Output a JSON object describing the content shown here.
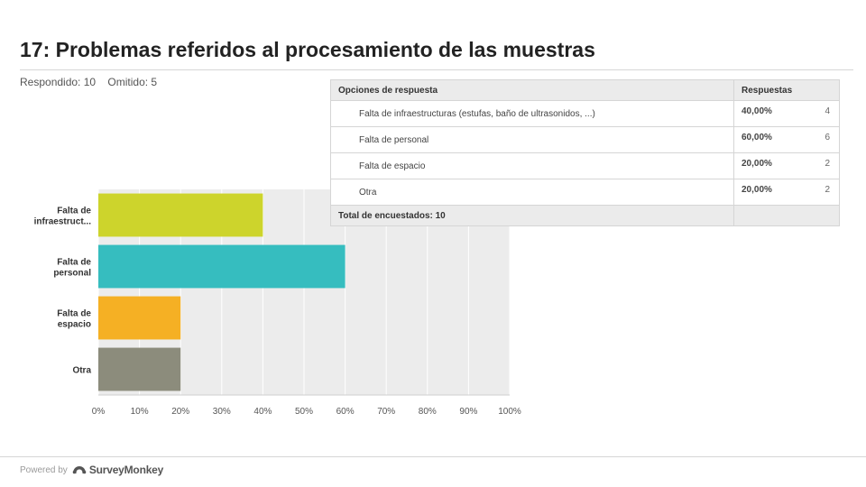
{
  "title": "17: Problemas referidos al procesamiento de las muestras",
  "stats": {
    "answered_label": "Respondido: 10",
    "skipped_label": "Omitido: 5"
  },
  "table": {
    "headers": {
      "option": "Opciones de respuesta",
      "responses": "Respuestas"
    },
    "rows": [
      {
        "option": "Falta de infraestructuras (estufas, baño de ultrasonidos, ...)",
        "percent": "40,00%",
        "count": "4"
      },
      {
        "option": "Falta de personal",
        "percent": "60,00%",
        "count": "6"
      },
      {
        "option": "Falta de espacio",
        "percent": "20,00%",
        "count": "2"
      },
      {
        "option": "Otra",
        "percent": "20,00%",
        "count": "2"
      }
    ],
    "total_label": "Total de encuestados: 10"
  },
  "chart_data": {
    "type": "bar",
    "orientation": "horizontal",
    "categories": [
      [
        "Falta de",
        "infraestruct..."
      ],
      [
        "Falta de",
        "personal"
      ],
      [
        "Falta de",
        "espacio"
      ],
      [
        "Otra"
      ]
    ],
    "values": [
      40,
      60,
      20,
      20
    ],
    "colors": [
      "#cdd42c",
      "#36bdbf",
      "#f5b024",
      "#8c8c7c"
    ],
    "xlim": [
      0,
      100
    ],
    "xticks": [
      "0%",
      "10%",
      "20%",
      "30%",
      "40%",
      "50%",
      "60%",
      "70%",
      "80%",
      "90%",
      "100%"
    ],
    "grid": true,
    "plot_background": "#ececec"
  },
  "footer": {
    "powered_label": "Powered by",
    "brand": "SurveyMonkey"
  }
}
